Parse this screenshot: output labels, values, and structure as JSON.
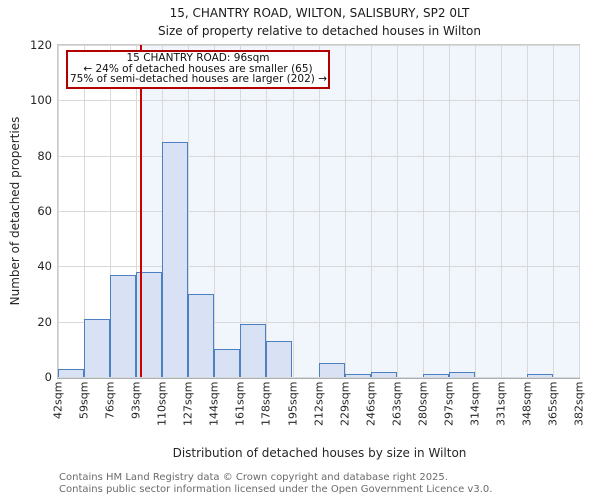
{
  "title": "15, CHANTRY ROAD, WILTON, SALISBURY, SP2 0LT",
  "subtitle": "Size of property relative to detached houses in Wilton",
  "annotation": {
    "line1": "15 CHANTRY ROAD: 96sqm",
    "line2": "← 24% of detached houses are smaller (65)",
    "line3": "75% of semi-detached houses are larger (202) →"
  },
  "chart_data": {
    "type": "bar",
    "title": "15, CHANTRY ROAD, WILTON, SALISBURY, SP2 0LT",
    "subtitle": "Size of property relative to detached houses in Wilton",
    "xlabel": "Distribution of detached houses by size in Wilton",
    "ylabel": "Number of detached properties",
    "bin_width_sqm": 17,
    "x_min_sqm": 42,
    "x_max_sqm": 382,
    "bin_labels": [
      "42sqm",
      "59sqm",
      "76sqm",
      "93sqm",
      "110sqm",
      "127sqm",
      "144sqm",
      "161sqm",
      "178sqm",
      "195sqm",
      "212sqm",
      "229sqm",
      "246sqm",
      "263sqm",
      "280sqm",
      "297sqm",
      "314sqm",
      "331sqm",
      "348sqm",
      "365sqm",
      "382sqm"
    ],
    "values": [
      3,
      21,
      37,
      38,
      85,
      30,
      10,
      19,
      13,
      0,
      5,
      1,
      2,
      0,
      1,
      2,
      0,
      0,
      1,
      0
    ],
    "marker_value_sqm": 96,
    "ylim": [
      0,
      120
    ],
    "yticks": [
      0,
      20,
      40,
      60,
      80,
      100,
      120
    ],
    "grid": true,
    "legend": "none",
    "colors": {
      "bar_fill": "#d9e2f4",
      "bar_edge": "#4d80c0",
      "marker_line": "#cc0000",
      "annotation_border": "#b00000",
      "shade_region": "#f1f5fc",
      "gridline": "#d9d9d9"
    }
  },
  "footer": {
    "line1": "Contains HM Land Registry data © Crown copyright and database right 2025.",
    "line2": "Contains public sector information licensed under the Open Government Licence v3.0."
  }
}
